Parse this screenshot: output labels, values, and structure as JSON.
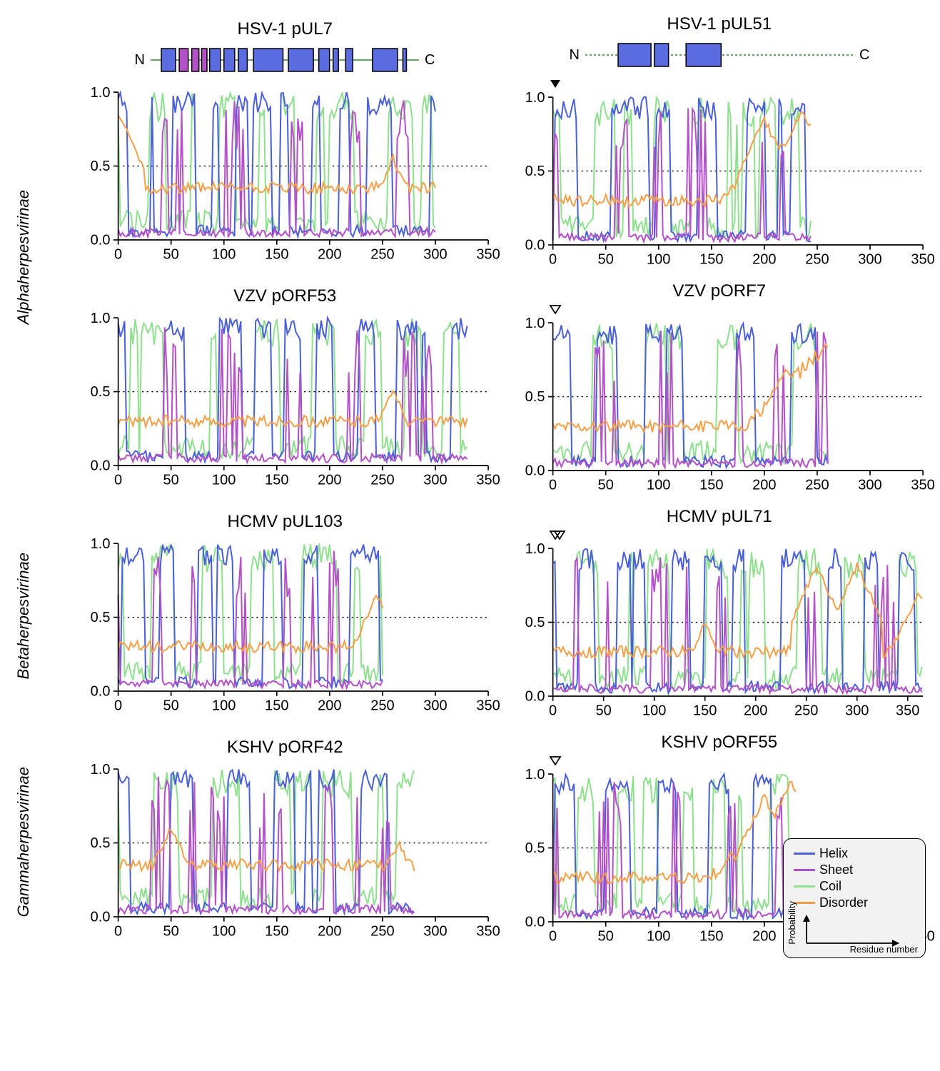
{
  "colors": {
    "helix": "#4a5fd8",
    "sheet": "#b450c8",
    "coil": "#8ee08e",
    "disorder": "#f5a048",
    "helix_fill": "#5b6be0",
    "sheet_fill": "#b450c8",
    "connector": "#5fa85f",
    "axis": "#000000",
    "dotted": "#000000",
    "legend_bg": "#f2f2f2"
  },
  "axis": {
    "ylim": [
      0,
      1.0
    ],
    "yticks": [
      0,
      0.5,
      1.0
    ],
    "xstep": 50,
    "label_fontsize": 18
  },
  "legend": {
    "items": [
      {
        "label": "Helix",
        "color": "#4a5fd8"
      },
      {
        "label": "Sheet",
        "color": "#b450c8"
      },
      {
        "label": "Coil",
        "color": "#8ee08e"
      },
      {
        "label": "Disorder",
        "color": "#f5a048"
      }
    ],
    "ylabel": "Probability",
    "xlabel": "Residue number"
  },
  "row_labels": [
    "Alphaherpesvirinae",
    "",
    "Betaherpesvirinae",
    "Gammaherpesvirinae"
  ],
  "panels": [
    {
      "row": 0,
      "col": 0,
      "title": "HSV-1 pUL7",
      "xmax": 350,
      "data_end": 300,
      "has_schematic": true,
      "schematic": {
        "n_label": "N",
        "c_label": "C",
        "length": 300,
        "blocks": [
          {
            "start": 12,
            "end": 28,
            "type": "helix"
          },
          {
            "start": 32,
            "end": 42,
            "type": "sheet"
          },
          {
            "start": 46,
            "end": 54,
            "type": "sheet"
          },
          {
            "start": 57,
            "end": 63,
            "type": "sheet"
          },
          {
            "start": 66,
            "end": 78,
            "type": "helix"
          },
          {
            "start": 82,
            "end": 94,
            "type": "helix"
          },
          {
            "start": 98,
            "end": 108,
            "type": "helix"
          },
          {
            "start": 115,
            "end": 148,
            "type": "helix"
          },
          {
            "start": 154,
            "end": 182,
            "type": "helix"
          },
          {
            "start": 188,
            "end": 200,
            "type": "helix"
          },
          {
            "start": 204,
            "end": 210,
            "type": "helix"
          },
          {
            "start": 218,
            "end": 226,
            "type": "helix"
          },
          {
            "start": 248,
            "end": 276,
            "type": "helix"
          },
          {
            "start": 282,
            "end": 286,
            "type": "helix"
          }
        ]
      },
      "marker": null,
      "disorder_bumps": [
        {
          "at": 0,
          "h": 0.85
        },
        {
          "at": 260,
          "h": 0.55
        }
      ],
      "disorder_base": 0.35
    },
    {
      "row": 0,
      "col": 1,
      "title": "HSV-1 pUL51",
      "xmax": 350,
      "data_end": 245,
      "has_schematic": true,
      "schematic": {
        "n_label": "N",
        "c_label": "C",
        "length": 245,
        "dotted": true,
        "blocks": [
          {
            "start": 30,
            "end": 60,
            "type": "helix"
          },
          {
            "start": 63,
            "end": 76,
            "type": "helix"
          },
          {
            "start": 92,
            "end": 124,
            "type": "helix"
          }
        ]
      },
      "marker": "filled",
      "disorder_bumps": [
        {
          "at": 200,
          "h": 0.85
        },
        {
          "at": 235,
          "h": 0.9
        }
      ],
      "disorder_base": 0.3,
      "disorder_rise_from": 160
    },
    {
      "row": 1,
      "col": 0,
      "title": "VZV pORF53",
      "xmax": 350,
      "data_end": 330,
      "marker": null,
      "disorder_base": 0.3,
      "disorder_bumps": [
        {
          "at": 260,
          "h": 0.5
        }
      ]
    },
    {
      "row": 1,
      "col": 1,
      "title": "VZV pORF7",
      "xmax": 350,
      "data_end": 260,
      "marker": "open",
      "disorder_base": 0.3,
      "disorder_rise_from": 180,
      "disorder_bumps": [
        {
          "at": 220,
          "h": 0.7
        },
        {
          "at": 250,
          "h": 0.72
        }
      ]
    },
    {
      "row": 2,
      "col": 0,
      "title": "HCMV pUL103",
      "xmax": 350,
      "data_end": 250,
      "marker": null,
      "disorder_base": 0.3,
      "disorder_bumps": [
        {
          "at": 245,
          "h": 0.65
        }
      ]
    },
    {
      "row": 2,
      "col": 1,
      "title": "HCMV pUL71",
      "xmax": 365,
      "data_end": 365,
      "marker": "double-open",
      "disorder_base": 0.3,
      "disorder_bumps": [
        {
          "at": 150,
          "h": 0.5
        },
        {
          "at": 260,
          "h": 0.88
        },
        {
          "at": 300,
          "h": 0.88
        },
        {
          "at": 360,
          "h": 0.7
        }
      ]
    },
    {
      "row": 3,
      "col": 0,
      "title": "KSHV pORF42",
      "xmax": 350,
      "data_end": 280,
      "marker": null,
      "disorder_base": 0.35,
      "disorder_bumps": [
        {
          "at": 50,
          "h": 0.6
        },
        {
          "at": 265,
          "h": 0.5
        }
      ]
    },
    {
      "row": 3,
      "col": 1,
      "title": "KSHV pORF55",
      "xmax": 350,
      "data_end": 230,
      "marker": "open",
      "disorder_base": 0.3,
      "disorder_rise_from": 150,
      "disorder_bumps": [
        {
          "at": 200,
          "h": 0.85
        },
        {
          "at": 225,
          "h": 0.95
        }
      ],
      "has_legend": true
    }
  ]
}
